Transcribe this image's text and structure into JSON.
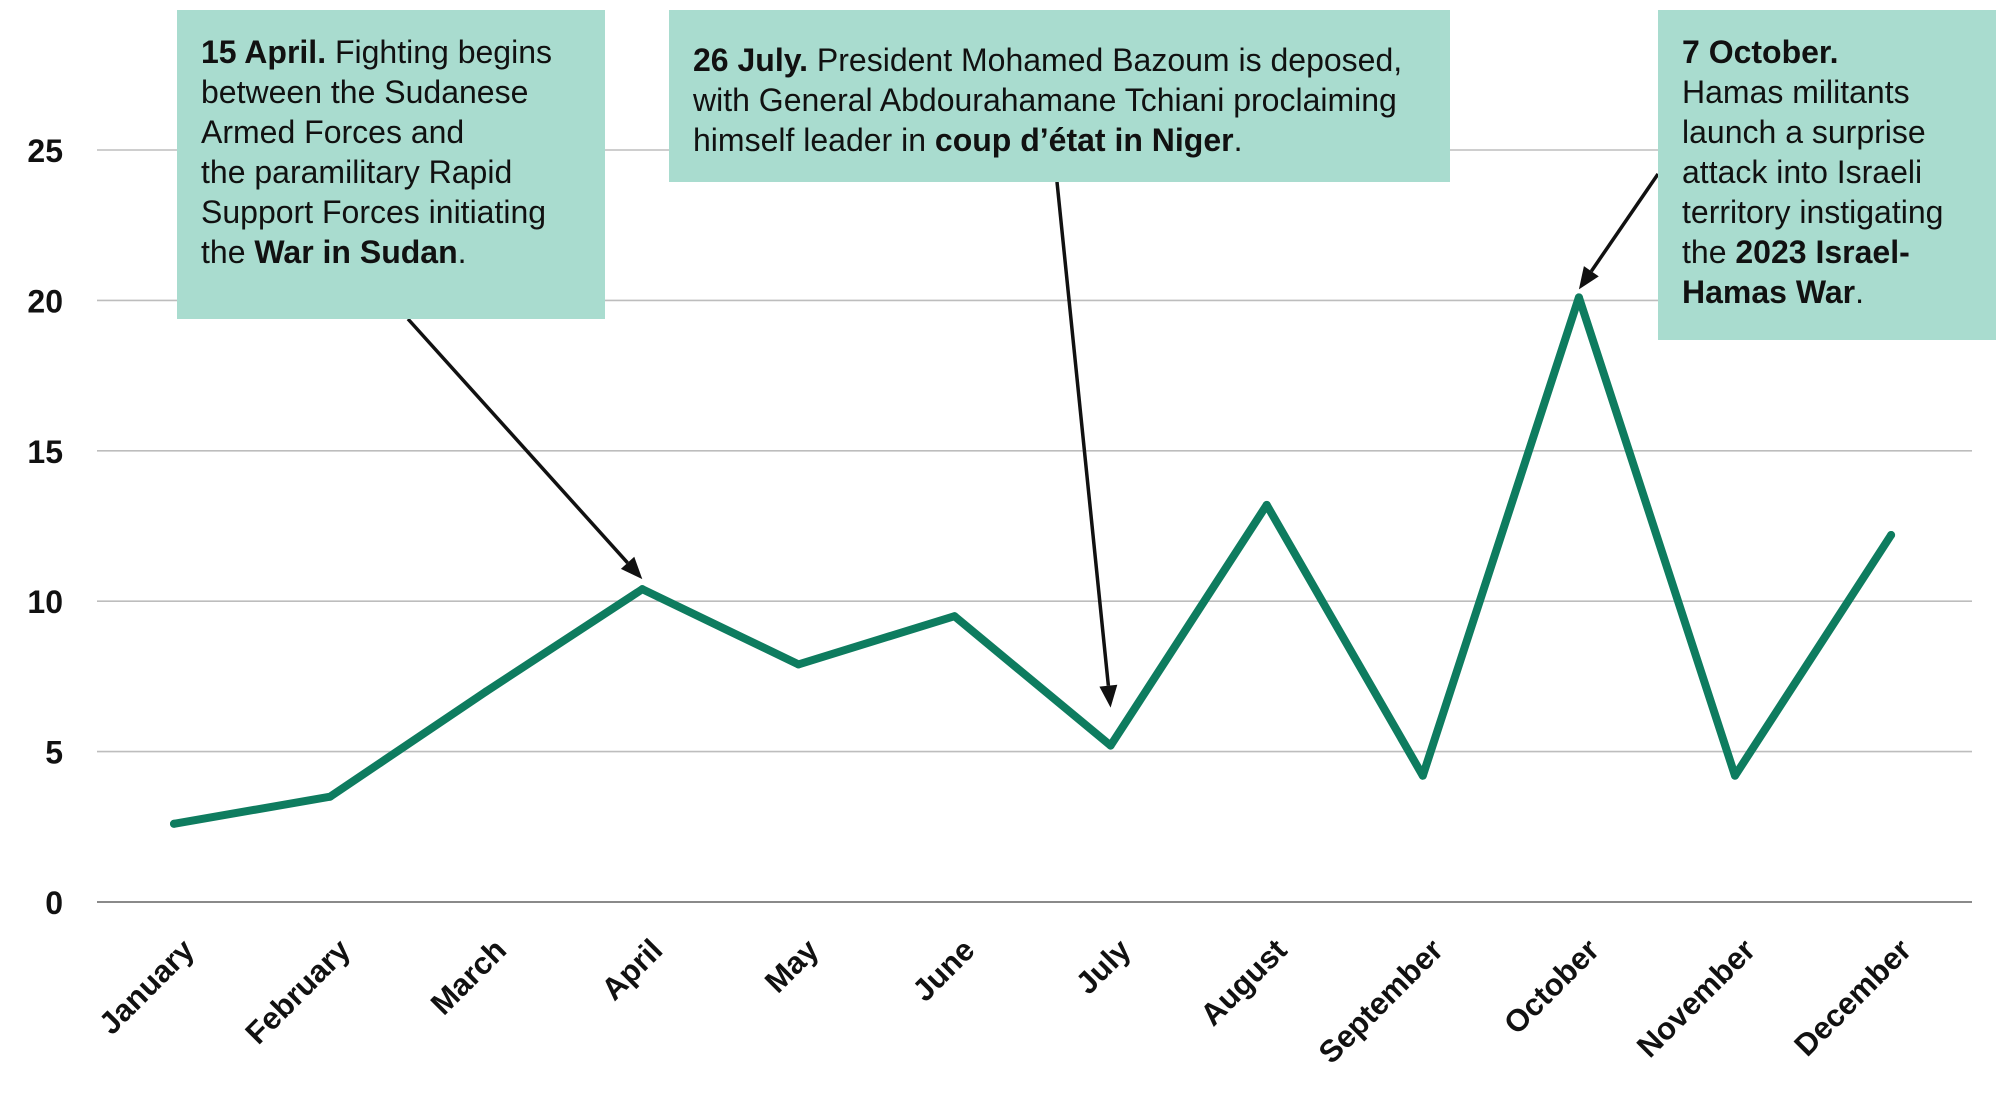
{
  "chart_data": {
    "type": "line",
    "categories": [
      "January",
      "February",
      "March",
      "April",
      "May",
      "June",
      "July",
      "August",
      "September",
      "October",
      "November",
      "December"
    ],
    "series": [
      {
        "values": [
          2.6,
          3.5,
          7.0,
          10.4,
          7.9,
          9.5,
          5.2,
          13.2,
          4.2,
          20.1,
          4.2,
          12.2
        ]
      }
    ],
    "y_ticks": [
      "0",
      "5",
      "10",
      "15",
      "20",
      "25"
    ],
    "ylim": [
      0,
      25
    ],
    "grid": true,
    "colors": {
      "line": "#0e7c5f",
      "callout_bg": "#a9dccf"
    },
    "annotations": [
      {
        "id": "april",
        "target_category": "April",
        "lines": [
          [
            {
              "t": "15 April.",
              "b": true
            },
            {
              "t": " Fighting begins",
              "b": false
            }
          ],
          [
            {
              "t": "between the Sudanese",
              "b": false
            }
          ],
          [
            {
              "t": "Armed Forces and",
              "b": false
            }
          ],
          [
            {
              "t": "the paramilitary Rapid",
              "b": false
            }
          ],
          [
            {
              "t": "Support Forces initiating",
              "b": false
            }
          ],
          [
            {
              "t": "the ",
              "b": false
            },
            {
              "t": "War in Sudan",
              "b": true
            },
            {
              "t": ".",
              "b": false
            }
          ]
        ]
      },
      {
        "id": "july",
        "target_category": "July",
        "lines": [
          [
            {
              "t": "26 July.",
              "b": true
            },
            {
              "t": " President Mohamed Bazoum is deposed,",
              "b": false
            }
          ],
          [
            {
              "t": "with General Abdourahamane Tchiani proclaiming",
              "b": false
            }
          ],
          [
            {
              "t": "himself leader in ",
              "b": false
            },
            {
              "t": "coup d’état in Niger",
              "b": true
            },
            {
              "t": ".",
              "b": false
            }
          ]
        ]
      },
      {
        "id": "october",
        "target_category": "October",
        "lines": [
          [
            {
              "t": "7 October.",
              "b": true
            }
          ],
          [
            {
              "t": "Hamas militants",
              "b": false
            }
          ],
          [
            {
              "t": "launch a surprise",
              "b": false
            }
          ],
          [
            {
              "t": "attack into Israeli",
              "b": false
            }
          ],
          [
            {
              "t": "territory instigating",
              "b": false
            }
          ],
          [
            {
              "t": "the ",
              "b": false
            },
            {
              "t": "2023 Israel-",
              "b": true
            }
          ],
          [
            {
              "t": "Hamas War",
              "b": true
            },
            {
              "t": ".",
              "b": false
            }
          ]
        ]
      }
    ]
  }
}
